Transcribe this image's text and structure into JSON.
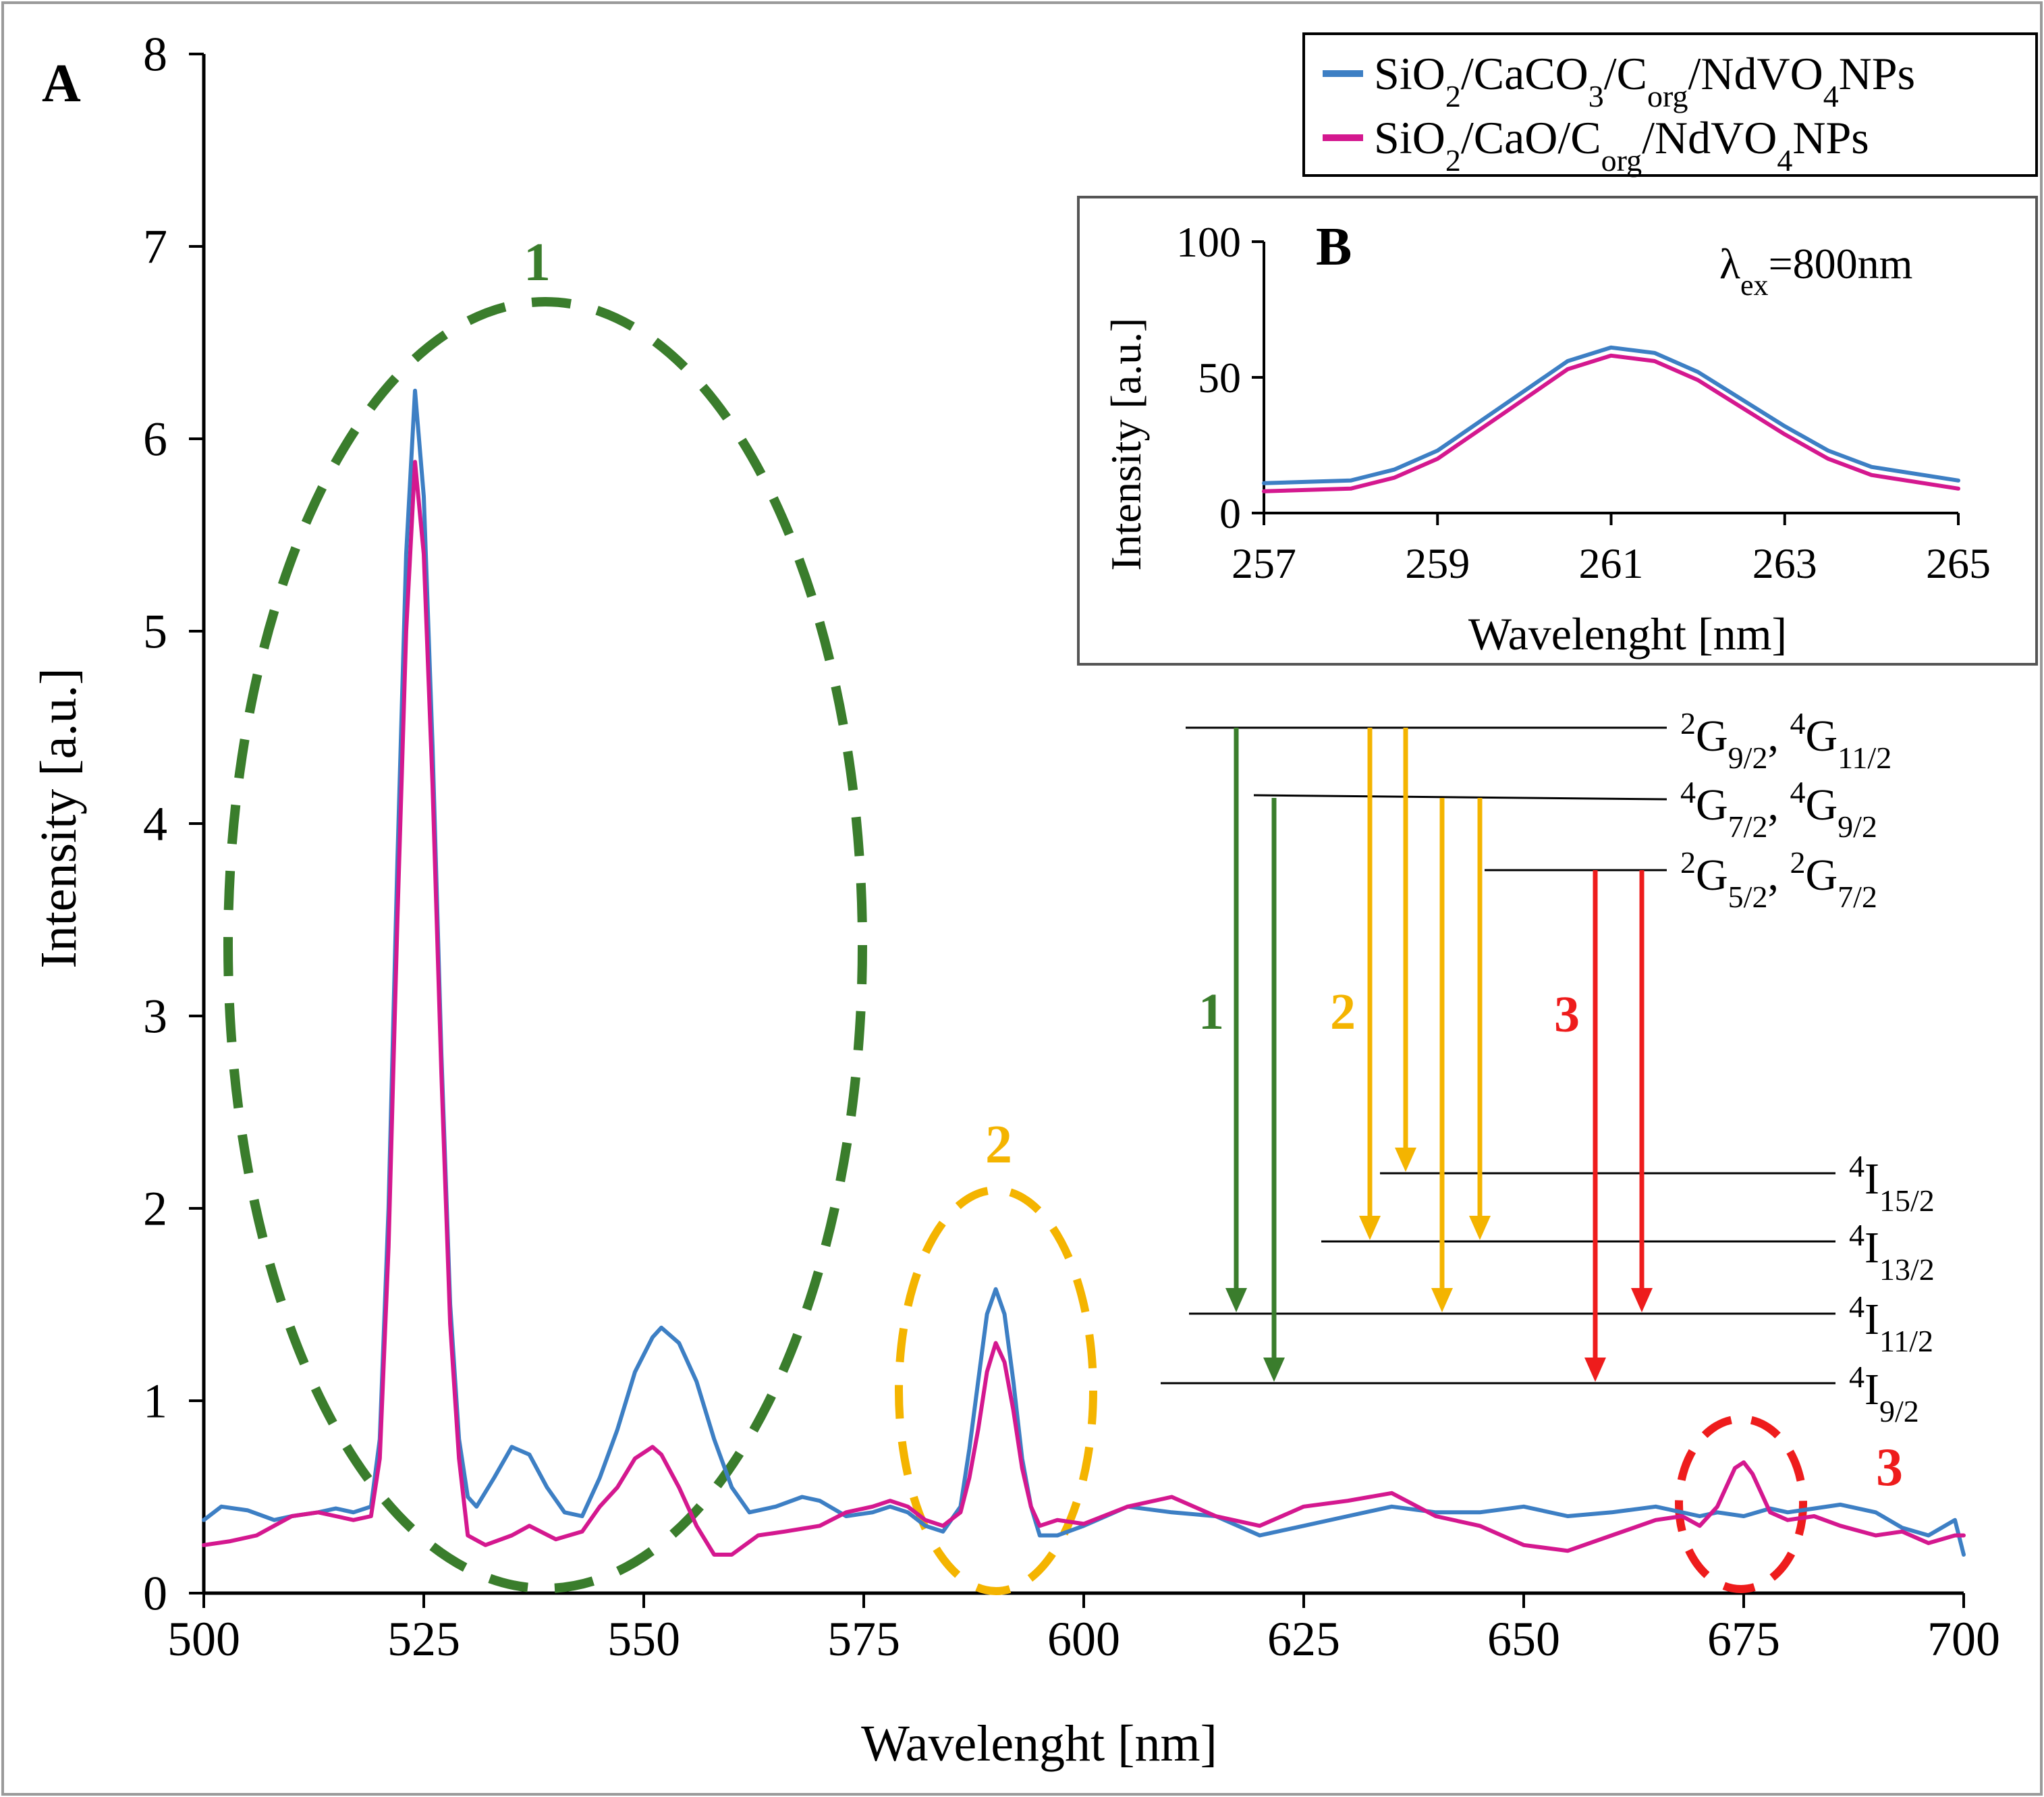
{
  "figure": {
    "panel_a_letter": "A",
    "panel_b_letter": "B",
    "excitation": {
      "lambda": "λ",
      "sub": "ex",
      "value": "=800nm"
    },
    "group_labels": [
      {
        "text": "1",
        "color": "#3a7d2c"
      },
      {
        "text": "2",
        "color": "#f4b400"
      },
      {
        "text": "3",
        "color": "#ee1c1c"
      }
    ],
    "legend": [
      {
        "color": "#3d7fc4",
        "parts": [
          [
            "SiO",
            ""
          ],
          [
            "2",
            "sub"
          ],
          [
            "/CaCO",
            ""
          ],
          [
            "3",
            "sub"
          ],
          [
            "/C",
            ""
          ],
          [
            "org",
            "sub"
          ],
          [
            "/NdVO",
            ""
          ],
          [
            "4",
            "sub"
          ],
          [
            "NPs",
            ""
          ]
        ]
      },
      {
        "color": "#d4188f",
        "parts": [
          [
            "SiO",
            ""
          ],
          [
            "2",
            "sub"
          ],
          [
            "/CaO/C",
            ""
          ],
          [
            "org",
            "sub"
          ],
          [
            "/NdVO",
            ""
          ],
          [
            "4",
            "sub"
          ],
          [
            "NPs",
            ""
          ]
        ]
      }
    ],
    "energy_levels": [
      {
        "parts": [
          [
            "2",
            "sup"
          ],
          [
            "G",
            ""
          ],
          [
            "9/2",
            "sub"
          ],
          [
            ", ",
            ""
          ],
          [
            "4",
            "sup"
          ],
          [
            "G",
            ""
          ],
          [
            "11/2",
            "sub"
          ]
        ]
      },
      {
        "parts": [
          [
            "4",
            "sup"
          ],
          [
            "G",
            ""
          ],
          [
            "7/2",
            "sub"
          ],
          [
            ", ",
            ""
          ],
          [
            "4",
            "sup"
          ],
          [
            "G",
            ""
          ],
          [
            "9/2",
            "sub"
          ]
        ]
      },
      {
        "parts": [
          [
            "2",
            "sup"
          ],
          [
            "G",
            ""
          ],
          [
            "5/2",
            "sub"
          ],
          [
            ", ",
            ""
          ],
          [
            "2",
            "sup"
          ],
          [
            "G",
            ""
          ],
          [
            "7/2",
            "sub"
          ]
        ]
      },
      {
        "parts": [
          [
            "4",
            "sup"
          ],
          [
            "I",
            ""
          ],
          [
            "15/2",
            "sub"
          ]
        ]
      },
      {
        "parts": [
          [
            "4",
            "sup"
          ],
          [
            "I",
            ""
          ],
          [
            "13/2",
            "sub"
          ]
        ]
      },
      {
        "parts": [
          [
            "4",
            "sup"
          ],
          [
            "I",
            ""
          ],
          [
            "11/2",
            "sub"
          ]
        ]
      },
      {
        "parts": [
          [
            "4",
            "sup"
          ],
          [
            "I",
            ""
          ],
          [
            "9/2",
            "sub"
          ]
        ]
      }
    ]
  },
  "chart_data": [
    {
      "panel": "A",
      "type": "line",
      "title": "",
      "xlabel": "Wavelenght [nm]",
      "ylabel": "Intensity [a.u.]",
      "xlim": [
        500,
        700
      ],
      "ylim": [
        0,
        8
      ],
      "xticks": [
        500,
        525,
        550,
        575,
        600,
        625,
        650,
        675,
        700
      ],
      "yticks": [
        0,
        1,
        2,
        3,
        4,
        5,
        6,
        7,
        8
      ],
      "grid": false,
      "legend_position": "top-right",
      "series": [
        {
          "name": "SiO2/CaCO3/Corg/NdVO4NPs",
          "color": "#3d7fc4",
          "x": [
            500,
            502,
            505,
            508,
            510,
            513,
            515,
            517,
            519,
            520,
            521,
            522,
            523,
            524,
            525,
            526,
            527,
            528,
            529,
            530,
            531,
            533,
            535,
            537,
            539,
            541,
            543,
            545,
            547,
            549,
            551,
            552,
            554,
            556,
            558,
            560,
            562,
            565,
            568,
            570,
            573,
            576,
            578,
            580,
            582,
            584,
            586,
            587,
            588,
            589,
            590,
            591,
            592,
            593,
            594,
            595,
            597,
            600,
            605,
            610,
            615,
            620,
            625,
            630,
            635,
            640,
            645,
            650,
            655,
            660,
            665,
            670,
            672,
            675,
            678,
            680,
            683,
            686,
            690,
            693,
            696,
            699,
            700
          ],
          "values": [
            0.38,
            0.45,
            0.43,
            0.38,
            0.4,
            0.42,
            0.44,
            0.42,
            0.45,
            0.8,
            2.0,
            3.8,
            5.4,
            6.25,
            5.7,
            4.4,
            2.8,
            1.5,
            0.8,
            0.5,
            0.45,
            0.6,
            0.76,
            0.72,
            0.55,
            0.42,
            0.4,
            0.6,
            0.85,
            1.15,
            1.33,
            1.38,
            1.3,
            1.1,
            0.8,
            0.55,
            0.42,
            0.45,
            0.5,
            0.48,
            0.4,
            0.42,
            0.45,
            0.42,
            0.35,
            0.32,
            0.45,
            0.75,
            1.1,
            1.45,
            1.58,
            1.45,
            1.1,
            0.7,
            0.45,
            0.3,
            0.3,
            0.35,
            0.45,
            0.42,
            0.4,
            0.3,
            0.35,
            0.4,
            0.45,
            0.42,
            0.42,
            0.45,
            0.4,
            0.42,
            0.45,
            0.4,
            0.42,
            0.4,
            0.44,
            0.42,
            0.44,
            0.46,
            0.42,
            0.34,
            0.3,
            0.38,
            0.2
          ]
        },
        {
          "name": "SiO2/CaO/Corg/NdVO4NPs",
          "color": "#d4188f",
          "x": [
            500,
            503,
            506,
            510,
            513,
            515,
            517,
            519,
            520,
            521,
            522,
            523,
            524,
            525,
            526,
            527,
            528,
            529,
            530,
            532,
            535,
            537,
            540,
            543,
            545,
            547,
            549,
            551,
            552,
            554,
            556,
            558,
            560,
            563,
            566,
            570,
            573,
            576,
            578,
            580,
            582,
            584,
            586,
            587,
            588,
            589,
            590,
            591,
            592,
            593,
            594,
            595,
            597,
            600,
            605,
            610,
            615,
            620,
            625,
            630,
            635,
            640,
            645,
            650,
            655,
            660,
            665,
            668,
            670,
            672,
            673,
            674,
            675,
            676,
            677,
            678,
            680,
            683,
            686,
            690,
            693,
            696,
            699,
            700
          ],
          "values": [
            0.25,
            0.27,
            0.3,
            0.4,
            0.42,
            0.4,
            0.38,
            0.4,
            0.7,
            1.8,
            3.5,
            5.0,
            5.88,
            5.4,
            4.2,
            2.7,
            1.4,
            0.7,
            0.3,
            0.25,
            0.3,
            0.35,
            0.28,
            0.32,
            0.45,
            0.55,
            0.7,
            0.76,
            0.72,
            0.55,
            0.35,
            0.2,
            0.2,
            0.3,
            0.32,
            0.35,
            0.42,
            0.45,
            0.48,
            0.45,
            0.38,
            0.35,
            0.42,
            0.6,
            0.85,
            1.15,
            1.3,
            1.2,
            0.95,
            0.65,
            0.45,
            0.35,
            0.38,
            0.36,
            0.45,
            0.5,
            0.4,
            0.35,
            0.45,
            0.48,
            0.52,
            0.4,
            0.35,
            0.25,
            0.22,
            0.3,
            0.38,
            0.4,
            0.35,
            0.45,
            0.55,
            0.65,
            0.68,
            0.62,
            0.52,
            0.42,
            0.38,
            0.4,
            0.35,
            0.3,
            0.32,
            0.26,
            0.3,
            0.3
          ]
        }
      ]
    },
    {
      "panel": "B",
      "type": "line",
      "title": "",
      "xlabel": "Wavelenght [nm]",
      "ylabel": "Intensity [a.u.]",
      "xlim": [
        257,
        265
      ],
      "ylim": [
        0,
        100
      ],
      "xticks": [
        257,
        259,
        261,
        263,
        265
      ],
      "yticks": [
        0,
        50,
        100
      ],
      "grid": false,
      "series": [
        {
          "name": "SiO2/CaCO3/Corg/NdVO4NPs",
          "color": "#3d7fc4",
          "x": [
            257,
            258,
            258.5,
            259,
            259.5,
            260,
            260.5,
            261,
            261.5,
            262,
            262.5,
            263,
            263.5,
            264,
            265
          ],
          "values": [
            11,
            12,
            16,
            23,
            34,
            45,
            56,
            61,
            59,
            52,
            42,
            32,
            23,
            17,
            12
          ]
        },
        {
          "name": "SiO2/CaO/Corg/NdVO4NPs",
          "color": "#d4188f",
          "x": [
            257,
            258,
            258.5,
            259,
            259.5,
            260,
            260.5,
            261,
            261.5,
            262,
            262.5,
            263,
            263.5,
            264,
            265
          ],
          "values": [
            8,
            9,
            13,
            20,
            31,
            42,
            53,
            58,
            56,
            49,
            39,
            29,
            20,
            14,
            9
          ]
        }
      ]
    }
  ]
}
